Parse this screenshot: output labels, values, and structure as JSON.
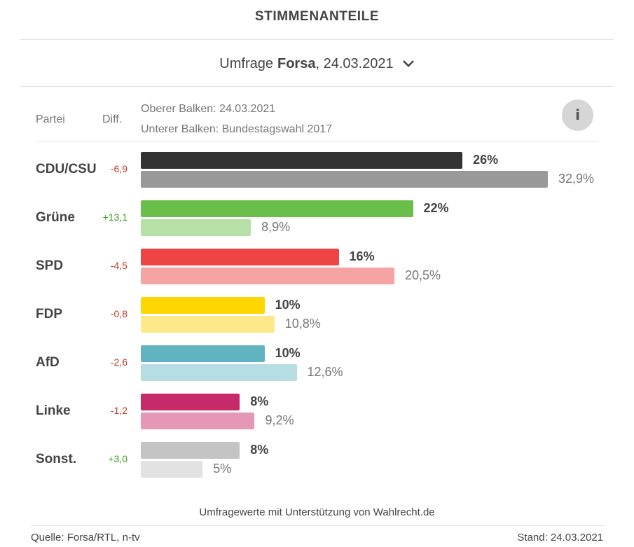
{
  "header": {
    "title": "STIMMENANTEILE"
  },
  "survey_select": {
    "prefix": "Umfrage",
    "institute": "Forsa",
    "date": ", 24.03.2021"
  },
  "table_header": {
    "party": "Partei",
    "diff": "Diff.",
    "legend_top": "Oberer Balken: 24.03.2021",
    "legend_bottom": "Unterer Balken: Bundestagswahl 2017",
    "info_label": "i"
  },
  "chart_data": {
    "type": "bar",
    "title": "STIMMENANTEILE",
    "series": [
      {
        "name": "Oberer Balken: 24.03.2021",
        "values": [
          26,
          22,
          16,
          10,
          10,
          8,
          8
        ]
      },
      {
        "name": "Unterer Balken: Bundestagswahl 2017",
        "values": [
          32.9,
          8.9,
          20.5,
          10.8,
          12.6,
          9.2,
          5
        ]
      }
    ],
    "categories": [
      "CDU/CSU",
      "Grüne",
      "SPD",
      "FDP",
      "AfD",
      "Linke",
      "Sonst."
    ],
    "xlim": [
      0,
      33
    ],
    "parties": [
      {
        "name": "CDU/CSU",
        "diff": "-6,9",
        "top_value": 26,
        "top_label": "26%",
        "bottom_value": 32.9,
        "bottom_label": "32,9%",
        "color_top": "#333333",
        "color_bottom": "#999999",
        "diff_color": "#c0392b"
      },
      {
        "name": "Grüne",
        "diff": "+13,1",
        "top_value": 22,
        "top_label": "22%",
        "bottom_value": 8.9,
        "bottom_label": "8,9%",
        "color_top": "#6abf4b",
        "color_bottom": "#b7e0a7",
        "diff_color": "#3a9d23"
      },
      {
        "name": "SPD",
        "diff": "-4,5",
        "top_value": 16,
        "top_label": "16%",
        "bottom_value": 20.5,
        "bottom_label": "20,5%",
        "color_top": "#ee4444",
        "color_bottom": "#f5a3a3",
        "diff_color": "#c0392b"
      },
      {
        "name": "FDP",
        "diff": "-0,8",
        "top_value": 10,
        "top_label": "10%",
        "bottom_value": 10.8,
        "bottom_label": "10,8%",
        "color_top": "#ffd700",
        "color_bottom": "#fde98a",
        "diff_color": "#c0392b"
      },
      {
        "name": "AfD",
        "diff": "-2,6",
        "top_value": 10,
        "top_label": "10%",
        "bottom_value": 12.6,
        "bottom_label": "12,6%",
        "color_top": "#62b3c0",
        "color_bottom": "#b5dde2",
        "diff_color": "#c0392b"
      },
      {
        "name": "Linke",
        "diff": "-1,2",
        "top_value": 8,
        "top_label": "8%",
        "bottom_value": 9.2,
        "bottom_label": "9,2%",
        "color_top": "#c72a68",
        "color_bottom": "#e597b6",
        "diff_color": "#c0392b"
      },
      {
        "name": "Sonst.",
        "diff": "+3,0",
        "top_value": 8,
        "top_label": "8%",
        "bottom_value": 5,
        "bottom_label": "5%",
        "color_top": "#c4c4c4",
        "color_bottom": "#e2e2e2",
        "diff_color": "#3a9d23"
      }
    ]
  },
  "credit": "Umfragewerte mit Unterstützung von Wahlrecht.de",
  "footer": {
    "source": "Quelle: Forsa/RTL, n-tv",
    "stand": "Stand: 24.03.2021"
  }
}
